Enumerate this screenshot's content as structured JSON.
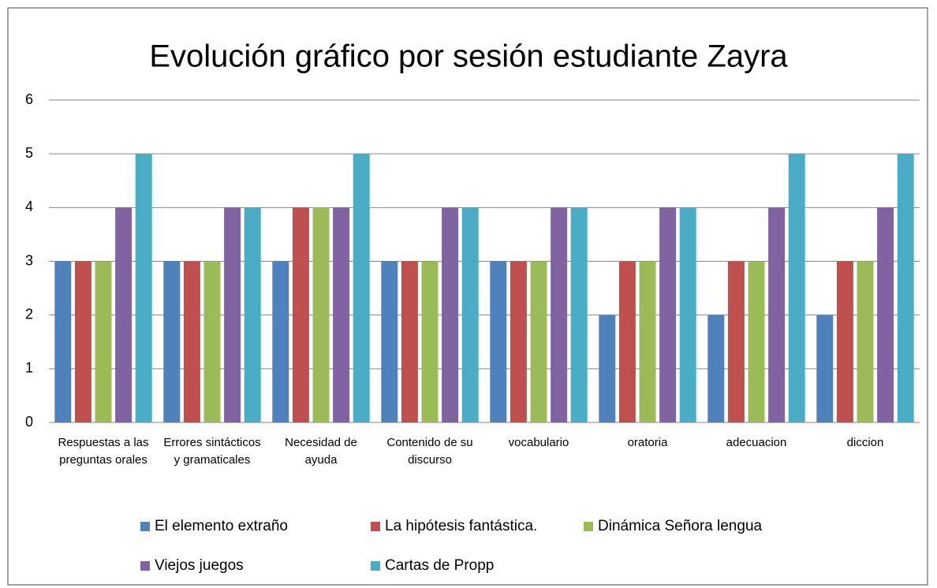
{
  "chart_data": {
    "type": "bar",
    "title": "Evolución gráfico por sesión estudiante Zayra",
    "categories": [
      "Respuestas a las preguntas orales",
      "Errores sintácticos y gramaticales",
      "Necesidad de ayuda",
      "Contenido de su discurso",
      "vocabulario",
      "oratoria",
      "adecuacion",
      "diccion"
    ],
    "series": [
      {
        "name": "El elemento extraño",
        "color": "#4f81bd",
        "values": [
          3,
          3,
          3,
          3,
          3,
          2,
          2,
          2
        ]
      },
      {
        "name": "La hipótesis fantástica.",
        "color": "#c0504d",
        "values": [
          3,
          3,
          4,
          3,
          3,
          3,
          3,
          3
        ]
      },
      {
        "name": "Dinámica Señora lengua",
        "color": "#9bbb59",
        "values": [
          3,
          3,
          4,
          3,
          3,
          3,
          3,
          3
        ]
      },
      {
        "name": "Viejos juegos",
        "color": "#8064a2",
        "values": [
          4,
          4,
          4,
          4,
          4,
          4,
          4,
          4
        ]
      },
      {
        "name": "Cartas de Propp",
        "color": "#4bacc6",
        "values": [
          5,
          4,
          5,
          4,
          4,
          4,
          5,
          5
        ]
      }
    ],
    "ylim": [
      0,
      6
    ],
    "yticks": [
      0,
      1,
      2,
      3,
      4,
      5,
      6
    ],
    "grid": true,
    "legend": "bottom"
  }
}
